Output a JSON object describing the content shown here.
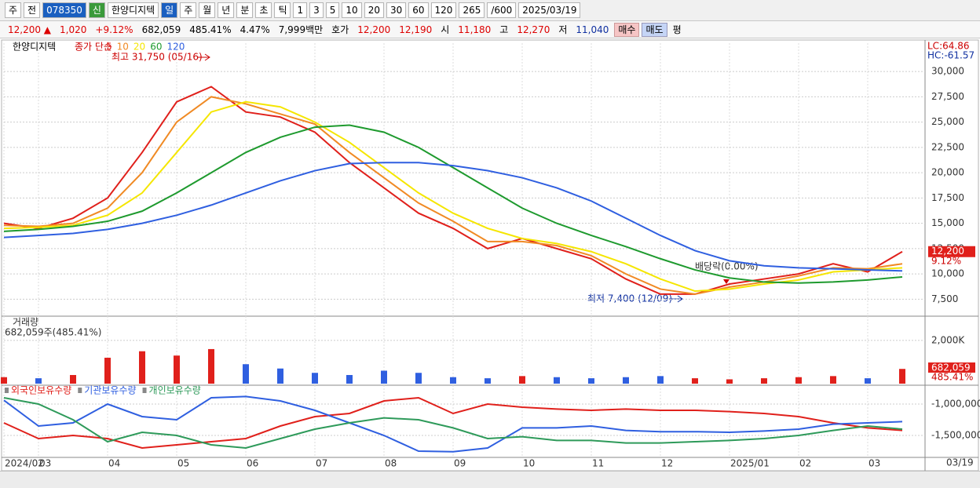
{
  "toolbar": {
    "row1": [
      "주",
      "전",
      "078350",
      "신",
      "한양디지텍",
      "일",
      "주",
      "월",
      "년",
      "분",
      "초",
      "틱",
      "1",
      "3",
      "5",
      "10",
      "20",
      "30",
      "60",
      "120",
      "265",
      "/600",
      "2025/03/19"
    ],
    "row2": [
      "12,200 ▲",
      "1,020",
      "+9.12%",
      "682,059",
      "485.41%",
      "4.47%",
      "7,999백만",
      "호가",
      "12,200",
      "12,190",
      "시",
      "11,180",
      "고",
      "12,270",
      "저",
      "11,040",
      "매수",
      "매도",
      "평"
    ]
  },
  "chart_data": [
    {
      "type": "line",
      "title": "한양디지텍",
      "subtitle": "종가 단순",
      "categories": [
        "2024/02",
        "03",
        null,
        "04",
        null,
        "05",
        null,
        "06",
        null,
        "07",
        null,
        "08",
        null,
        "09",
        null,
        "10",
        null,
        "11",
        null,
        "12",
        null,
        "2025/01",
        null,
        "02",
        null,
        "03",
        null
      ],
      "last_date": "03/19",
      "series": [
        {
          "name": "5",
          "color": "#e0201b",
          "values": [
            15000,
            14500,
            15500,
            17500,
            22000,
            27000,
            28500,
            26000,
            25500,
            24000,
            21000,
            18500,
            16000,
            14500,
            12500,
            13500,
            12500,
            11500,
            9500,
            8000,
            8000,
            9000,
            9500,
            10000,
            11000,
            10200,
            12200
          ],
          "value_labels": [
            null,
            null,
            null,
            null,
            null,
            null,
            null,
            null,
            null,
            null,
            null,
            null,
            null,
            null,
            null,
            null,
            null,
            null,
            null,
            null,
            null,
            null,
            null,
            null,
            null,
            null,
            "12,200"
          ]
        },
        {
          "name": "10",
          "color": "#f08a24",
          "values": [
            14800,
            14700,
            15000,
            16500,
            20000,
            25000,
            27500,
            26800,
            25800,
            24800,
            22000,
            19500,
            17000,
            15200,
            13200,
            13200,
            12800,
            11800,
            10000,
            8500,
            8000,
            8700,
            9200,
            9800,
            10600,
            10500,
            11000
          ]
        },
        {
          "name": "20",
          "color": "#f5e600",
          "values": [
            14500,
            14600,
            14800,
            15800,
            18000,
            22000,
            26000,
            27000,
            26500,
            25000,
            23000,
            20500,
            18000,
            16000,
            14500,
            13500,
            13000,
            12200,
            11000,
            9500,
            8300,
            8500,
            9000,
            9400,
            10200,
            10400,
            10600
          ]
        },
        {
          "name": "60",
          "color": "#1e9a2e",
          "values": [
            14200,
            14400,
            14700,
            15200,
            16200,
            18000,
            20000,
            22000,
            23500,
            24500,
            24700,
            24000,
            22500,
            20500,
            18500,
            16500,
            15000,
            13800,
            12700,
            11500,
            10400,
            9600,
            9200,
            9100,
            9200,
            9400,
            9700
          ]
        },
        {
          "name": "120",
          "color": "#2f5fe0",
          "values": [
            13600,
            13800,
            14000,
            14400,
            15000,
            15800,
            16800,
            18000,
            19200,
            20200,
            20900,
            21000,
            21000,
            20700,
            20200,
            19500,
            18500,
            17200,
            15500,
            13800,
            12300,
            11300,
            10800,
            10600,
            10500,
            10400,
            10300
          ]
        }
      ],
      "ylim": [
        5900,
        32800
      ],
      "yticks": [
        {
          "value": 7500,
          "label": "7,500"
        },
        {
          "value": 10000,
          "label": "10,000"
        },
        {
          "value": 12500,
          "label": "12,500"
        },
        {
          "value": 15000,
          "label": "15,000"
        },
        {
          "value": 17500,
          "label": "17,500"
        },
        {
          "value": 20000,
          "label": "20,000"
        },
        {
          "value": 22500,
          "label": "22,500"
        },
        {
          "value": 25000,
          "label": "25,000"
        },
        {
          "value": 27500,
          "label": "27,500"
        },
        {
          "value": 30000,
          "label": "30,000"
        }
      ],
      "grid": true,
      "change_label": "9.12%",
      "lc": "LC:64.86",
      "hc": "HC:-61.57",
      "annotations": [
        "최고 31,750 (05/16)",
        "최저 7,400 (12/09)",
        "배당락(0.00%)"
      ]
    },
    {
      "type": "bar",
      "title": "거래량",
      "subtitle": "682,059주(485.41%)",
      "up_color": "#e0201b",
      "down_color": "#2f5fe0",
      "values": [
        300,
        250,
        400,
        1200,
        1500,
        1300,
        1600,
        900,
        700,
        500,
        400,
        600,
        500,
        300,
        250,
        350,
        300,
        250,
        300,
        350,
        250,
        200,
        250,
        300,
        350,
        250,
        682.059
      ],
      "value_labels": [
        null,
        null,
        null,
        null,
        null,
        null,
        null,
        null,
        null,
        null,
        null,
        null,
        null,
        null,
        null,
        null,
        null,
        null,
        null,
        null,
        null,
        null,
        null,
        null,
        null,
        null,
        "682,059"
      ],
      "ratio_label": "485.41%",
      "ylim": [
        0,
        3050
      ],
      "yticks": [
        {
          "value": 2000,
          "label": "2,000K"
        }
      ]
    },
    {
      "type": "line",
      "series": [
        {
          "name": "외국인보유수량",
          "color": "#e0201b",
          "values": [
            -1300000,
            -1550000,
            -1500000,
            -1550000,
            -1700000,
            -1650000,
            -1600000,
            -1550000,
            -1350000,
            -1200000,
            -1150000,
            -950000,
            -900000,
            -1150000,
            -1000000,
            -1050000,
            -1080000,
            -1100000,
            -1080000,
            -1100000,
            -1100000,
            -1120000,
            -1150000,
            -1200000,
            -1300000,
            -1380000,
            -1420000
          ]
        },
        {
          "name": "기관보유수량",
          "color": "#2f5fe0",
          "values": [
            -940000,
            -1350000,
            -1300000,
            -1000000,
            -1200000,
            -1250000,
            -900000,
            -880000,
            -950000,
            -1100000,
            -1300000,
            -1500000,
            -1750000,
            -1760000,
            -1700000,
            -1380000,
            -1380000,
            -1350000,
            -1420000,
            -1440000,
            -1440000,
            -1450000,
            -1430000,
            -1400000,
            -1320000,
            -1300000,
            -1280000
          ]
        },
        {
          "name": "개인보유수량",
          "color": "#2e9a5a",
          "values": [
            -900000,
            -1000000,
            -1250000,
            -1600000,
            -1450000,
            -1500000,
            -1650000,
            -1700000,
            -1550000,
            -1400000,
            -1300000,
            -1220000,
            -1250000,
            -1380000,
            -1550000,
            -1520000,
            -1580000,
            -1580000,
            -1620000,
            -1620000,
            -1600000,
            -1580000,
            -1550000,
            -1500000,
            -1420000,
            -1350000,
            -1400000
          ]
        }
      ],
      "ylim": [
        -1812500,
        -812500
      ],
      "yticks": [
        {
          "value": -1000000,
          "label": "-1,000,000"
        },
        {
          "value": -1500000,
          "label": "-1,500,000"
        }
      ]
    }
  ]
}
